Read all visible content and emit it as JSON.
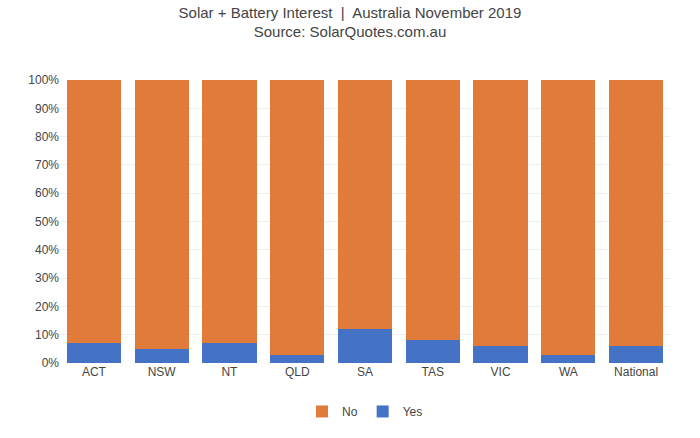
{
  "chart_data": {
    "type": "bar",
    "stacked": true,
    "title": "Solar + Battery Interest  |  Australia November 2019",
    "subtitle": "Source: SolarQuotes.com.au",
    "categories": [
      "ACT",
      "NSW",
      "NT",
      "QLD",
      "SA",
      "TAS",
      "VIC",
      "WA",
      "National"
    ],
    "series": [
      {
        "name": "Yes",
        "color": "#4472c4",
        "values": [
          7,
          5,
          7,
          3,
          12,
          8,
          6,
          3,
          6
        ]
      },
      {
        "name": "No",
        "color": "#e07b39",
        "values": [
          93,
          95,
          93,
          97,
          88,
          92,
          94,
          97,
          94
        ]
      }
    ],
    "ylim": [
      0,
      100
    ],
    "yticks": [
      {
        "value": 0,
        "label": "0%"
      },
      {
        "value": 10,
        "label": "10%"
      },
      {
        "value": 20,
        "label": "20%"
      },
      {
        "value": 30,
        "label": "30%"
      },
      {
        "value": 40,
        "label": "40%"
      },
      {
        "value": 50,
        "label": "50%"
      },
      {
        "value": 60,
        "label": "60%"
      },
      {
        "value": 70,
        "label": "70%"
      },
      {
        "value": 80,
        "label": "80%"
      },
      {
        "value": 90,
        "label": "90%"
      },
      {
        "value": 100,
        "label": "100%"
      }
    ],
    "grid": true,
    "legend": "bottom"
  }
}
